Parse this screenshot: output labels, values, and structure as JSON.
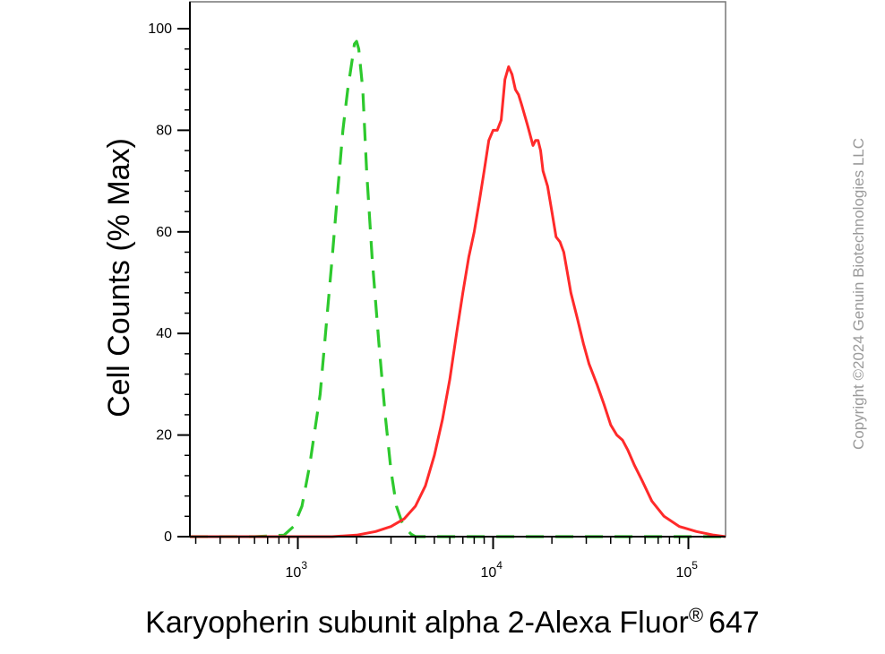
{
  "chart_data": {
    "type": "line",
    "x_scale": "log",
    "xlim": [
      280,
      155000
    ],
    "ylim": [
      0,
      105
    ],
    "y_ticks": [
      "0",
      "20",
      "40",
      "60",
      "80",
      "100"
    ],
    "x_ticks": [
      {
        "base": "10",
        "exp": "3",
        "value": 1000
      },
      {
        "base": "10",
        "exp": "4",
        "value": 10000
      },
      {
        "base": "10",
        "exp": "5",
        "value": 100000
      }
    ],
    "xlabel": "Karyopherin subunit alpha 2-Alexa Fluor",
    "xlabel_mark": "®",
    "xlabel_suffix": "647",
    "ylabel": "Cell Counts (% Max)",
    "grid": false,
    "legend": "none",
    "series": [
      {
        "style": "dashed",
        "color": "#2dc92d",
        "x": [
          280,
          600,
          850,
          950,
          1050,
          1150,
          1300,
          1400,
          1500,
          1600,
          1700,
          1800,
          1900,
          1950,
          2000,
          2050,
          2150,
          2250,
          2400,
          2600,
          2800,
          3000,
          3200,
          3400,
          3600,
          3800,
          4000,
          4300,
          5000,
          10000,
          50000,
          155000
        ],
        "y": [
          0,
          0,
          0.3,
          2,
          6,
          14,
          28,
          42,
          55,
          68,
          80,
          88,
          94,
          97,
          97.5,
          96,
          88,
          72,
          55,
          38,
          24,
          13,
          6,
          3,
          1.5,
          0.5,
          0,
          0,
          0,
          0,
          0,
          0
        ]
      },
      {
        "style": "solid",
        "color": "#ff2a2a",
        "x": [
          280,
          1500,
          2000,
          2500,
          3000,
          3500,
          4000,
          4500,
          5000,
          5500,
          6000,
          6500,
          7000,
          7500,
          8000,
          8500,
          9000,
          9500,
          10000,
          10500,
          11000,
          11500,
          12000,
          12500,
          13000,
          13500,
          14000,
          15000,
          16000,
          16500,
          17000,
          17500,
          18000,
          19000,
          20000,
          21000,
          22000,
          23000,
          24000,
          25000,
          27000,
          29000,
          31000,
          34000,
          37000,
          40000,
          43000,
          46000,
          49000,
          53000,
          58000,
          65000,
          75000,
          90000,
          110000,
          135000,
          155000
        ],
        "y": [
          0,
          0,
          0.3,
          1,
          2,
          3.5,
          6,
          10,
          16,
          23,
          31,
          40,
          48,
          55,
          60,
          66,
          72,
          78,
          80,
          80,
          82,
          90,
          92.5,
          91,
          88,
          87,
          85,
          81,
          77,
          78,
          78,
          76,
          72,
          69,
          64,
          59,
          58,
          56,
          52,
          48,
          43,
          38,
          34,
          30,
          26,
          22,
          20,
          19,
          17,
          14,
          11,
          7,
          4,
          2,
          1,
          0.3,
          0
        ]
      }
    ]
  },
  "watermark": "Copyright ©2024 Genuin Biotechnologies LLC"
}
